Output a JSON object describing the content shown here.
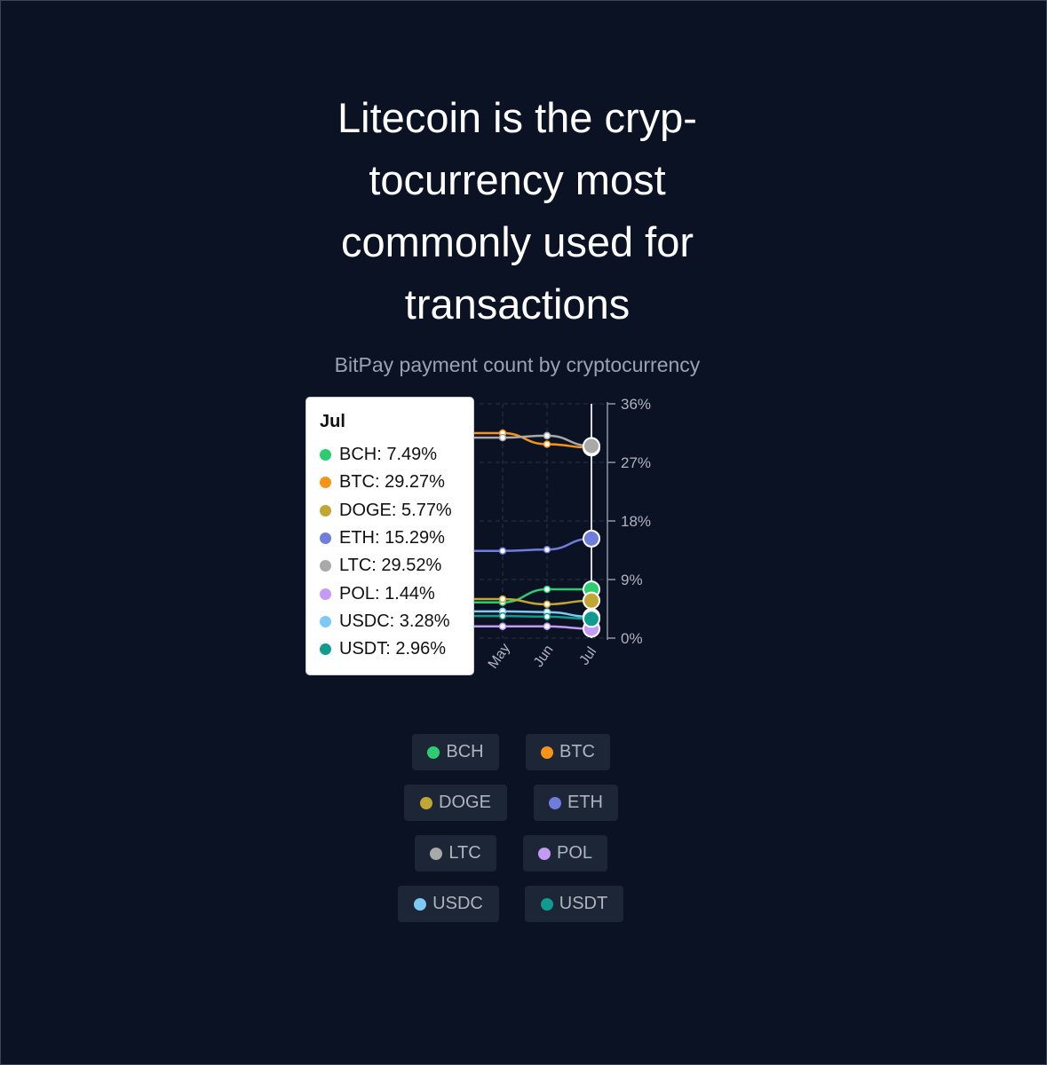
{
  "headline": "Litecoin is the cryp-\ntocurrency most\ncommonly used for\ntransactions",
  "subtitle": "BitPay payment count by cryptocurrency",
  "tooltip": {
    "title": "Jul",
    "rows": [
      {
        "label": "BCH: 7.49%",
        "color": "#2ecc71"
      },
      {
        "label": "BTC: 29.27%",
        "color": "#f7931a"
      },
      {
        "label": "DOGE: 5.77%",
        "color": "#c2a633"
      },
      {
        "label": "ETH: 15.29%",
        "color": "#6f7ddb"
      },
      {
        "label": "LTC: 29.52%",
        "color": "#a9a9a9"
      },
      {
        "label": "POL: 1.44%",
        "color": "#c39bf5"
      },
      {
        "label": "USDC: 3.28%",
        "color": "#7ec8f5"
      },
      {
        "label": "USDT: 2.96%",
        "color": "#0f9b8e"
      }
    ]
  },
  "legend": [
    {
      "label": "BCH",
      "color": "#2ecc71"
    },
    {
      "label": "BTC",
      "color": "#f7931a"
    },
    {
      "label": "DOGE",
      "color": "#c2a633"
    },
    {
      "label": "ETH",
      "color": "#6f7ddb"
    },
    {
      "label": "LTC",
      "color": "#a9a9a9"
    },
    {
      "label": "POL",
      "color": "#c39bf5"
    },
    {
      "label": "USDC",
      "color": "#7ec8f5"
    },
    {
      "label": "USDT",
      "color": "#0f9b8e"
    }
  ],
  "chart_data": {
    "type": "line",
    "x": [
      "May",
      "Jun",
      "Jul"
    ],
    "y_ticks": [
      "0%",
      "9%",
      "18%",
      "27%",
      "36%"
    ],
    "ylim": [
      0,
      36
    ],
    "highlighted": "Jul",
    "series": [
      {
        "name": "BCH",
        "color": "#2ecc71",
        "values": [
          5.5,
          7.5,
          7.49
        ]
      },
      {
        "name": "BTC",
        "color": "#f7931a",
        "values": [
          31.5,
          29.8,
          29.27
        ]
      },
      {
        "name": "DOGE",
        "color": "#c2a633",
        "values": [
          6.0,
          5.2,
          5.77
        ]
      },
      {
        "name": "ETH",
        "color": "#6f7ddb",
        "values": [
          13.4,
          13.6,
          15.29
        ]
      },
      {
        "name": "LTC",
        "color": "#a9a9a9",
        "values": [
          30.8,
          31.1,
          29.52
        ]
      },
      {
        "name": "POL",
        "color": "#c39bf5",
        "values": [
          1.8,
          1.8,
          1.44
        ]
      },
      {
        "name": "USDC",
        "color": "#7ec8f5",
        "values": [
          4.1,
          4.0,
          3.28
        ]
      },
      {
        "name": "USDT",
        "color": "#0f9b8e",
        "values": [
          3.4,
          3.3,
          2.96
        ]
      }
    ]
  }
}
